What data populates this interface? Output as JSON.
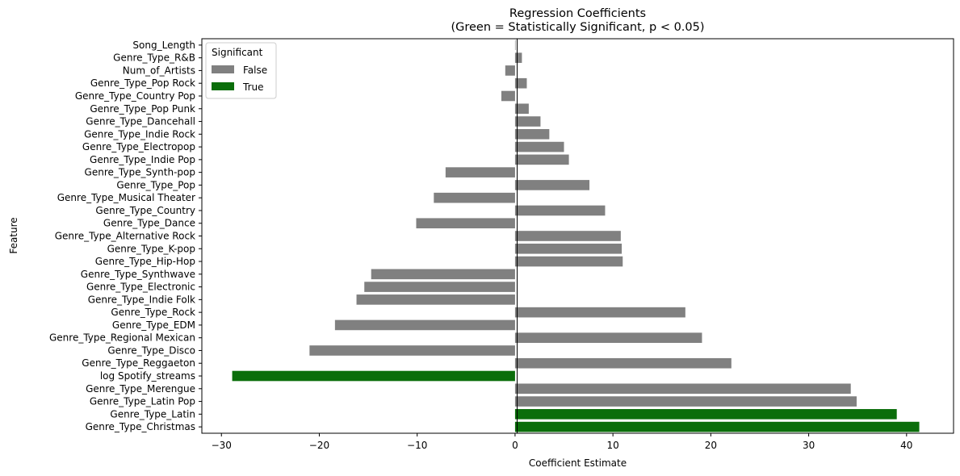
{
  "chart_data": {
    "type": "bar",
    "orientation": "horizontal",
    "title": "Regression Coefficients",
    "subtitle": "(Green = Statistically Significant, p < 0.05)",
    "xlabel": "Coefficient Estimate",
    "ylabel": "Feature",
    "xlim": [
      -32,
      44.8
    ],
    "xticks": [
      -30,
      -20,
      -10,
      0,
      10,
      20,
      30,
      40
    ],
    "grid": false,
    "legend": {
      "title": "Significant",
      "placement": "upper-left",
      "entries": [
        {
          "label": "False",
          "color": "#808080"
        },
        {
          "label": "True",
          "color": "#0b6e0b"
        }
      ]
    },
    "categories": [
      "Song_Length",
      "Genre_Type_R&B",
      "Num_of_Artists",
      "Genre_Type_Pop Rock",
      "Genre_Type_Country Pop",
      "Genre_Type_Pop Punk",
      "Genre_Type_Dancehall",
      "Genre_Type_Indie Rock",
      "Genre_Type_Electropop",
      "Genre_Type_Indie Pop",
      "Genre_Type_Synth-pop",
      "Genre_Type_Pop",
      "Genre_Type_Musical Theater",
      "Genre_Type_Country",
      "Genre_Type_Dance",
      "Genre_Type_Alternative Rock",
      "Genre_Type_K-pop",
      "Genre_Type_Hip-Hop",
      "Genre_Type_Synthwave",
      "Genre_Type_Electronic",
      "Genre_Type_Indie Folk",
      "Genre_Type_Rock",
      "Genre_Type_EDM",
      "Genre_Type_Regional Mexican",
      "Genre_Type_Disco",
      "Genre_Type_Reggaeton",
      "log Spotify_streams",
      "Genre_Type_Merengue",
      "Genre_Type_Latin Pop",
      "Genre_Type_Latin",
      "Genre_Type_Christmas"
    ],
    "values": [
      0.05,
      0.7,
      -1.0,
      1.2,
      -1.4,
      1.4,
      2.6,
      3.5,
      5.0,
      5.5,
      -7.1,
      7.6,
      -8.3,
      9.2,
      -10.1,
      10.8,
      10.9,
      11.0,
      -14.7,
      -15.4,
      -16.2,
      17.4,
      -18.4,
      19.1,
      -21.0,
      22.1,
      -28.9,
      34.3,
      34.9,
      39.0,
      41.3
    ],
    "significant": [
      false,
      false,
      false,
      false,
      false,
      false,
      false,
      false,
      false,
      false,
      false,
      false,
      false,
      false,
      false,
      false,
      false,
      false,
      false,
      false,
      false,
      false,
      false,
      false,
      false,
      false,
      true,
      false,
      false,
      true,
      true
    ]
  }
}
